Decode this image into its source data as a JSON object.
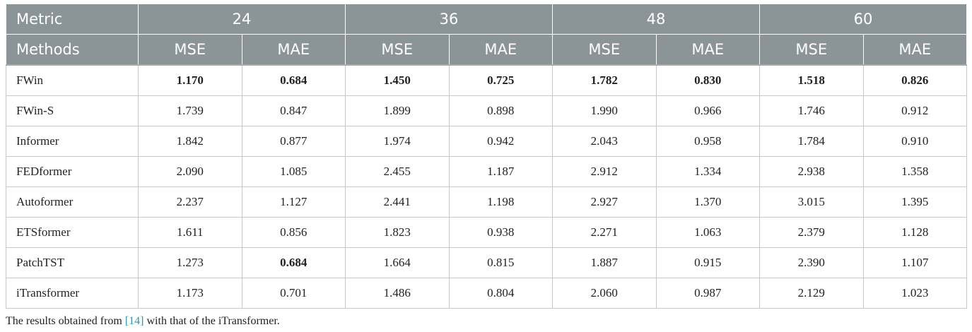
{
  "header": {
    "metric_label": "Metric",
    "methods_label": "Methods",
    "horizons": [
      "24",
      "36",
      "48",
      "60"
    ],
    "subheaders": [
      "MSE",
      "MAE",
      "MSE",
      "MAE",
      "MSE",
      "MAE",
      "MSE",
      "MAE"
    ]
  },
  "table": {
    "rows": [
      {
        "method": "FWin",
        "cells": [
          {
            "text": "1.170",
            "bold": true
          },
          {
            "text": "0.684",
            "bold": true
          },
          {
            "text": "1.450",
            "bold": true
          },
          {
            "text": "0.725",
            "bold": true
          },
          {
            "text": "1.782",
            "bold": true
          },
          {
            "text": "0.830",
            "bold": true
          },
          {
            "text": "1.518",
            "bold": true
          },
          {
            "text": "0.826",
            "bold": true
          }
        ]
      },
      {
        "method": "FWin-S",
        "cells": [
          "1.739",
          "0.847",
          "1.899",
          "0.898",
          "1.990",
          "0.966",
          "1.746",
          "0.912"
        ]
      },
      {
        "method": "Informer",
        "cells": [
          "1.842",
          "0.877",
          "1.974",
          "0.942",
          "2.043",
          "0.958",
          "1.784",
          "0.910"
        ]
      },
      {
        "method": "FEDformer",
        "cells": [
          "2.090",
          "1.085",
          "2.455",
          "1.187",
          "2.912",
          "1.334",
          "2.938",
          "1.358"
        ]
      },
      {
        "method": "Autoformer",
        "cells": [
          "2.237",
          "1.127",
          "2.441",
          "1.198",
          "2.927",
          "1.370",
          "3.015",
          "1.395"
        ]
      },
      {
        "method": "ETSformer",
        "cells": [
          "1.611",
          "0.856",
          "1.823",
          "0.938",
          "2.271",
          "1.063",
          "2.379",
          "1.128"
        ]
      },
      {
        "method": "PatchTST",
        "cells": [
          "1.273",
          {
            "text": "0.684",
            "bold": true
          },
          "1.664",
          "0.815",
          "1.887",
          "0.915",
          "2.390",
          "1.107"
        ]
      },
      {
        "method": "iTransformer",
        "cells": [
          "1.173",
          "0.701",
          "1.486",
          "0.804",
          "2.060",
          "0.987",
          "2.129",
          "1.023"
        ]
      }
    ]
  },
  "footnote": {
    "before": "The results obtained from ",
    "link": "[14]",
    "after": " with that of the iTransformer."
  }
}
